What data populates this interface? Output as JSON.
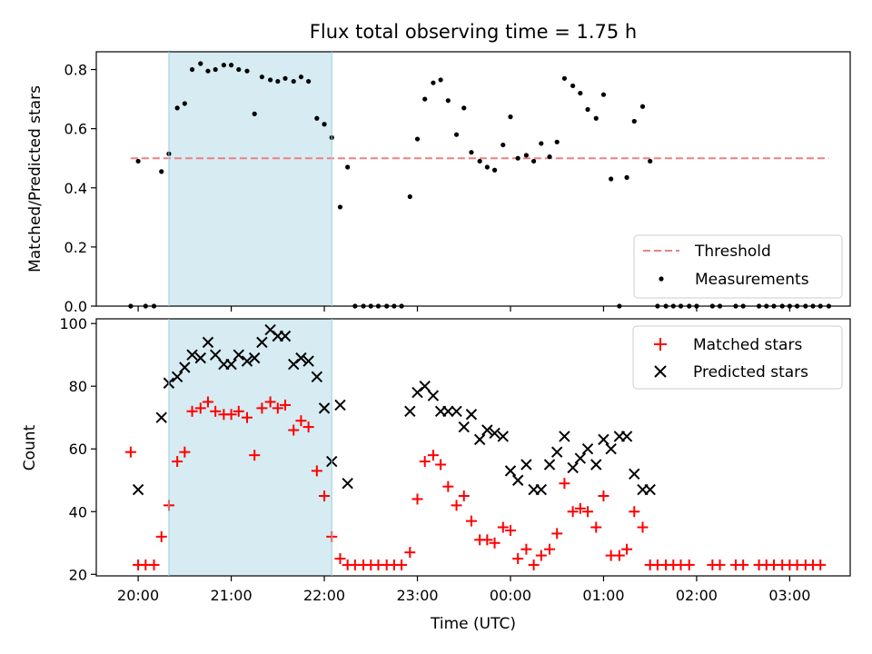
{
  "chart_data": [
    {
      "type": "scatter",
      "title": "Flux total observing time = 1.75 h",
      "xlabel": "",
      "ylabel": "Matched/Predicted stars",
      "ylim": [
        0,
        0.86
      ],
      "yticks": [
        0.0,
        0.2,
        0.4,
        0.6,
        0.8
      ],
      "ytick_labels": [
        "0.0",
        "0.2",
        "0.4",
        "0.6",
        "0.8"
      ],
      "xlim_hours": [
        19.55,
        27.65
      ],
      "xticks_hours": [
        20,
        21,
        22,
        23,
        24,
        25,
        26,
        27
      ],
      "xtick_labels": [
        "20:00",
        "21:00",
        "22:00",
        "23:00",
        "00:00",
        "01:00",
        "02:00",
        "03:00"
      ],
      "shaded_span_hours": [
        20.33,
        22.08
      ],
      "shade_color": "#add8e6",
      "legend_position": "lower-right",
      "legend": [
        "Threshold",
        "Measurements"
      ],
      "threshold": {
        "name": "Threshold",
        "value": 0.5,
        "x_range_hours": [
          19.92,
          27.42
        ],
        "color": "#f08080"
      },
      "series": [
        {
          "name": "Measurements",
          "color": "#000000",
          "x_hours": [
            19.92,
            20.0,
            20.08,
            20.17,
            20.25,
            20.33,
            20.42,
            20.5,
            20.58,
            20.67,
            20.75,
            20.83,
            20.92,
            21.0,
            21.08,
            21.17,
            21.25,
            21.33,
            21.42,
            21.5,
            21.58,
            21.67,
            21.75,
            21.83,
            21.92,
            22.0,
            22.08,
            22.17,
            22.25,
            22.33,
            22.42,
            22.5,
            22.58,
            22.67,
            22.75,
            22.83,
            22.92,
            23.0,
            23.08,
            23.17,
            23.25,
            23.33,
            23.42,
            23.5,
            23.58,
            23.67,
            23.75,
            23.83,
            23.92,
            24.0,
            24.08,
            24.17,
            24.25,
            24.33,
            24.42,
            24.5,
            24.58,
            24.67,
            24.75,
            24.83,
            24.92,
            25.0,
            25.08,
            25.17,
            25.25,
            25.33,
            25.42,
            25.5,
            25.58,
            25.67,
            25.75,
            25.83,
            25.92,
            26.0,
            26.17,
            26.25,
            26.42,
            26.5,
            26.67,
            26.75,
            26.83,
            26.92,
            27.0,
            27.08,
            27.17,
            27.25,
            27.33,
            27.42
          ],
          "y": [
            0.0,
            0.49,
            0.0,
            0.0,
            0.455,
            0.515,
            0.67,
            0.685,
            0.8,
            0.82,
            0.795,
            0.8,
            0.815,
            0.815,
            0.8,
            0.795,
            0.65,
            0.775,
            0.765,
            0.76,
            0.77,
            0.76,
            0.775,
            0.76,
            0.635,
            0.615,
            0.57,
            0.335,
            0.47,
            0.0,
            0.0,
            0.0,
            0.0,
            0.0,
            0.0,
            0.0,
            0.37,
            0.565,
            0.7,
            0.755,
            0.765,
            0.695,
            0.58,
            0.67,
            0.52,
            0.49,
            0.47,
            0.46,
            0.545,
            0.64,
            0.5,
            0.51,
            0.49,
            0.55,
            0.505,
            0.555,
            0.77,
            0.745,
            0.72,
            0.665,
            0.635,
            0.715,
            0.43,
            0.0,
            0.435,
            0.625,
            0.675,
            0.49,
            0.0,
            0.0,
            0.0,
            0.0,
            0.0,
            0.0,
            0.0,
            0.0,
            0.0,
            0.0,
            0.0,
            0.0,
            0.0,
            0.0,
            0.0,
            0.0,
            0.0,
            0.0,
            0.0,
            0.0
          ]
        }
      ]
    },
    {
      "type": "scatter",
      "title": "",
      "xlabel": "Time (UTC)",
      "ylabel": "Count",
      "ylim": [
        19.5,
        101.5
      ],
      "yticks": [
        20,
        40,
        60,
        80,
        100
      ],
      "ytick_labels": [
        "20",
        "40",
        "60",
        "80",
        "100"
      ],
      "xlim_hours": [
        19.55,
        27.65
      ],
      "xticks_hours": [
        20,
        21,
        22,
        23,
        24,
        25,
        26,
        27
      ],
      "xtick_labels": [
        "20:00",
        "21:00",
        "22:00",
        "23:00",
        "00:00",
        "01:00",
        "02:00",
        "03:00"
      ],
      "shaded_span_hours": [
        20.33,
        22.08
      ],
      "shade_color": "#add8e6",
      "legend_position": "upper-right",
      "legend": [
        "Matched stars",
        "Predicted stars"
      ],
      "series": [
        {
          "name": "Matched stars",
          "marker": "plus",
          "color": "#ff0000",
          "x_hours": [
            19.92,
            20.0,
            20.08,
            20.17,
            20.25,
            20.33,
            20.42,
            20.5,
            20.58,
            20.67,
            20.75,
            20.83,
            20.92,
            21.0,
            21.08,
            21.17,
            21.25,
            21.33,
            21.42,
            21.5,
            21.58,
            21.67,
            21.75,
            21.83,
            21.92,
            22.0,
            22.08,
            22.17,
            22.25,
            22.33,
            22.42,
            22.5,
            22.58,
            22.67,
            22.75,
            22.83,
            22.92,
            23.0,
            23.08,
            23.17,
            23.25,
            23.33,
            23.42,
            23.5,
            23.58,
            23.67,
            23.75,
            23.83,
            23.92,
            24.0,
            24.08,
            24.17,
            24.25,
            24.33,
            24.42,
            24.5,
            24.58,
            24.67,
            24.75,
            24.83,
            24.92,
            25.0,
            25.08,
            25.17,
            25.25,
            25.33,
            25.42,
            25.5,
            25.58,
            25.67,
            25.75,
            25.83,
            25.92,
            26.17,
            26.25,
            26.42,
            26.5,
            26.67,
            26.75,
            26.83,
            26.92,
            27.0,
            27.08,
            27.17,
            27.25,
            27.33
          ],
          "y": [
            59,
            23,
            23,
            23,
            32,
            42,
            56,
            59,
            72,
            73,
            75,
            72,
            71,
            71,
            72,
            70,
            58,
            73,
            75,
            73,
            74,
            66,
            69,
            67,
            53,
            45,
            32,
            25,
            23,
            23,
            23,
            23,
            23,
            23,
            23,
            23,
            27,
            44,
            56,
            58,
            55,
            48,
            42,
            45,
            37,
            31,
            31,
            30,
            35,
            34,
            25,
            28,
            23,
            26,
            28,
            33,
            49,
            40,
            41,
            40,
            35,
            45,
            26,
            26,
            28,
            40,
            35,
            23,
            23,
            23,
            23,
            23,
            23,
            23,
            23,
            23,
            23,
            23,
            23,
            23,
            23,
            23,
            23,
            23,
            23,
            23
          ]
        },
        {
          "name": "Predicted stars",
          "marker": "x",
          "color": "#000000",
          "x_hours": [
            20.0,
            20.25,
            20.33,
            20.42,
            20.5,
            20.58,
            20.67,
            20.75,
            20.83,
            20.92,
            21.0,
            21.08,
            21.17,
            21.25,
            21.33,
            21.42,
            21.5,
            21.58,
            21.67,
            21.75,
            21.83,
            21.92,
            22.0,
            22.08,
            22.17,
            22.25,
            22.92,
            23.0,
            23.08,
            23.17,
            23.25,
            23.33,
            23.42,
            23.5,
            23.58,
            23.67,
            23.75,
            23.83,
            23.92,
            24.0,
            24.08,
            24.17,
            24.25,
            24.33,
            24.42,
            24.5,
            24.58,
            24.67,
            24.75,
            24.83,
            24.92,
            25.0,
            25.08,
            25.17,
            25.25,
            25.33,
            25.42,
            25.5
          ],
          "y": [
            47,
            70,
            81,
            83,
            86,
            90,
            89,
            94,
            90,
            87,
            87,
            90,
            88,
            89,
            94,
            98,
            96,
            96,
            87,
            89,
            88,
            83,
            73,
            56,
            74,
            49,
            72,
            78,
            80,
            77,
            72,
            72,
            72,
            67,
            71,
            63,
            66,
            65,
            64,
            53,
            50,
            55,
            47,
            47,
            55,
            59,
            64,
            54,
            57,
            60,
            55,
            63,
            60,
            64,
            64,
            52,
            47,
            47
          ]
        }
      ]
    }
  ]
}
